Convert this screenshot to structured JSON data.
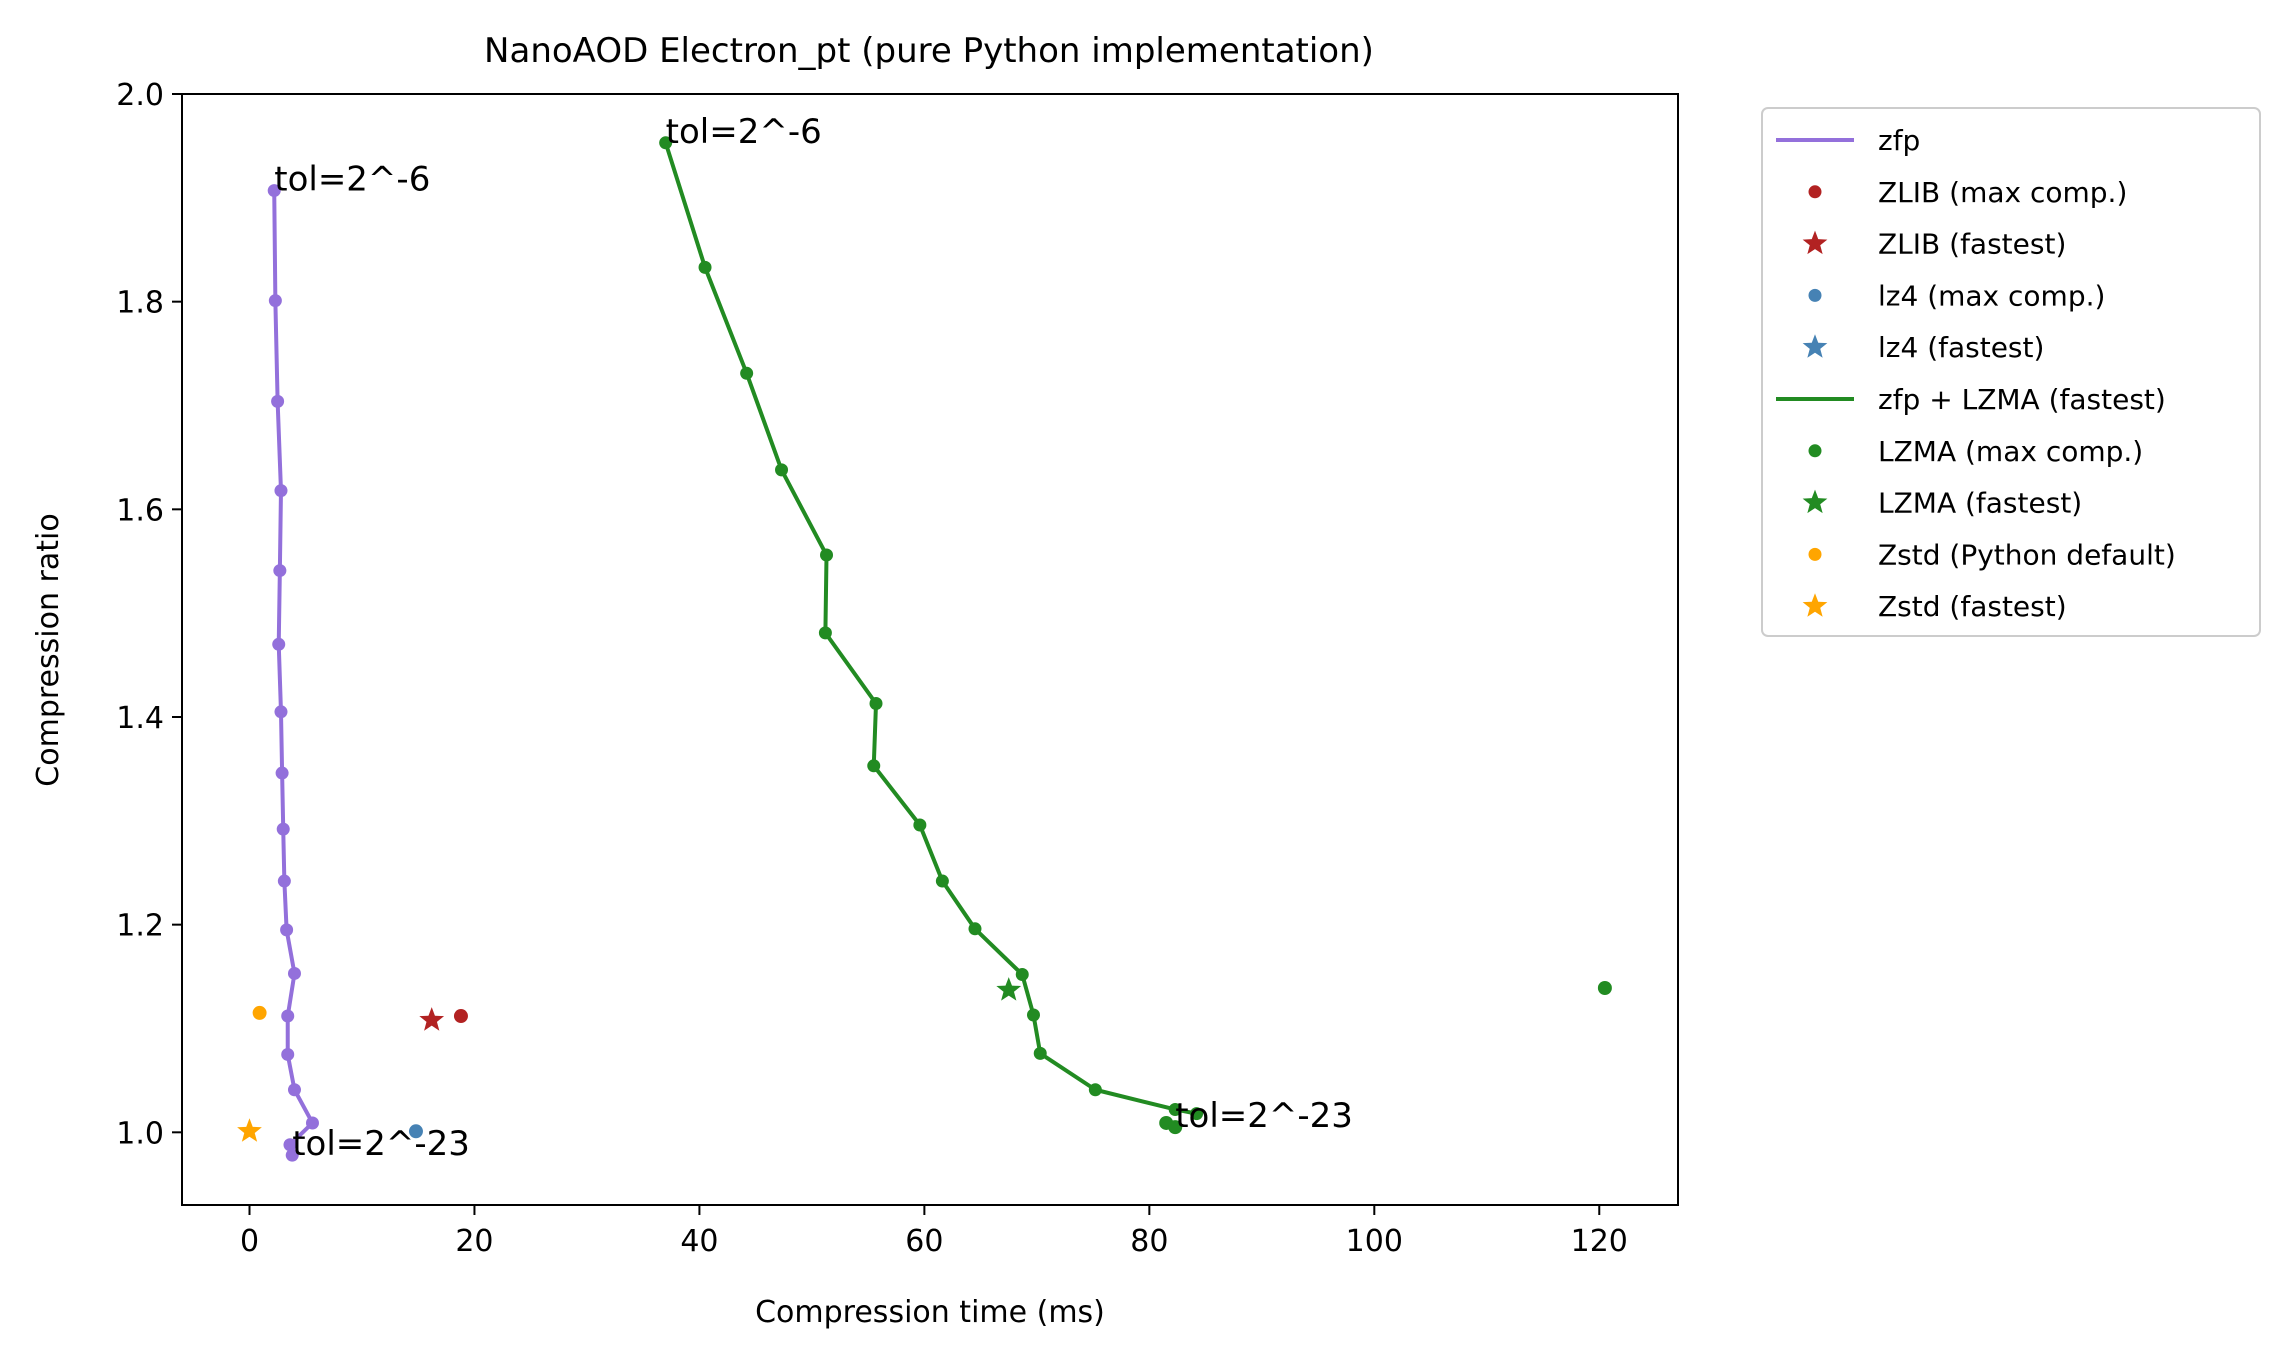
{
  "chart_data": {
    "type": "line",
    "title": "NanoAOD Electron_pt (pure Python implementation)",
    "xlabel": "Compression time (ms)",
    "ylabel": "Compression ratio",
    "xlim": [
      -6,
      127
    ],
    "ylim": [
      0.93,
      2.0
    ],
    "xticks": [
      0,
      20,
      40,
      60,
      80,
      100,
      120
    ],
    "yticks": [
      1.0,
      1.2,
      1.4,
      1.6,
      1.8,
      2.0
    ],
    "xtick_labels": [
      "0",
      "20",
      "40",
      "60",
      "80",
      "100",
      "120"
    ],
    "ytick_labels": [
      "1.0",
      "1.2",
      "1.4",
      "1.6",
      "1.8",
      "2.0"
    ],
    "grid": false,
    "legend_position": "outside upper right",
    "series": [
      {
        "name": "zfp",
        "kind": "line",
        "color": "#9370db",
        "x": [
          2.2,
          2.3,
          2.5,
          2.8,
          2.7,
          2.6,
          2.8,
          2.9,
          3.0,
          3.1,
          3.3,
          4.0,
          3.4,
          3.4,
          4.0,
          5.6,
          3.6,
          3.8
        ],
        "y": [
          1.907,
          1.801,
          1.704,
          1.618,
          1.541,
          1.47,
          1.405,
          1.346,
          1.292,
          1.242,
          1.195,
          1.153,
          1.112,
          1.075,
          1.041,
          1.009,
          0.988,
          0.978
        ]
      },
      {
        "name": "ZLIB (max comp.)",
        "kind": "dot",
        "color": "#b22222",
        "x": [
          18.8
        ],
        "y": [
          1.112
        ]
      },
      {
        "name": "ZLIB (fastest)",
        "kind": "star",
        "color": "#b22222",
        "x": [
          16.2
        ],
        "y": [
          1.108
        ]
      },
      {
        "name": "lz4 (max comp.)",
        "kind": "dot",
        "color": "#4682b4",
        "x": [
          14.8
        ],
        "y": [
          1.001
        ]
      },
      {
        "name": "lz4 (fastest)",
        "kind": "star",
        "color": "#4682b4",
        "x": [],
        "y": []
      },
      {
        "name": "zfp + LZMA (fastest)",
        "kind": "line",
        "color": "#228b22",
        "x": [
          37.0,
          40.5,
          44.2,
          47.3,
          51.3,
          51.2,
          55.7,
          55.5,
          59.6,
          61.6,
          64.5,
          68.7,
          69.7,
          70.3,
          75.2,
          82.3,
          84.2
        ],
        "y": [
          1.953,
          1.833,
          1.731,
          1.638,
          1.556,
          1.481,
          1.413,
          1.353,
          1.296,
          1.242,
          1.196,
          1.152,
          1.113,
          1.076,
          1.041,
          1.022,
          1.018
        ]
      },
      {
        "name": "LZMA (max comp.)",
        "kind": "dot",
        "color": "#228b22",
        "x": [
          120.5,
          81.5,
          82.3
        ],
        "y": [
          1.139,
          1.009,
          1.005
        ]
      },
      {
        "name": "LZMA (fastest)",
        "kind": "star",
        "color": "#228b22",
        "x": [
          67.5
        ],
        "y": [
          1.137
        ]
      },
      {
        "name": "Zstd (Python default)",
        "kind": "dot",
        "color": "#ffa500",
        "x": [
          0.9
        ],
        "y": [
          1.115
        ]
      },
      {
        "name": "Zstd (fastest)",
        "kind": "star",
        "color": "#ffa500",
        "x": [
          0.0
        ],
        "y": [
          1.001
        ]
      }
    ],
    "annotations": [
      {
        "text": "tol=2^-6",
        "x": 2.2,
        "y": 1.907
      },
      {
        "text": "tol=2^-23",
        "x": 3.8,
        "y": 0.978
      },
      {
        "text": "tol=2^-6",
        "x": 37.0,
        "y": 1.953
      },
      {
        "text": "tol=2^-23",
        "x": 82.3,
        "y": 1.005
      }
    ]
  }
}
